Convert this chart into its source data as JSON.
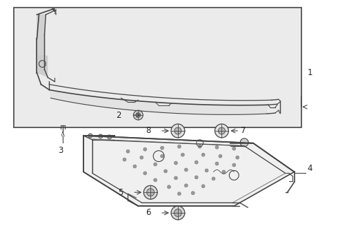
{
  "bg_color": "#ffffff",
  "fig_width": 4.9,
  "fig_height": 3.6,
  "dpi": 100,
  "line_color": "#444444",
  "light_line": "#777777",
  "box_bg": "#ebebeb",
  "panel_bg": "#f5f5f5"
}
